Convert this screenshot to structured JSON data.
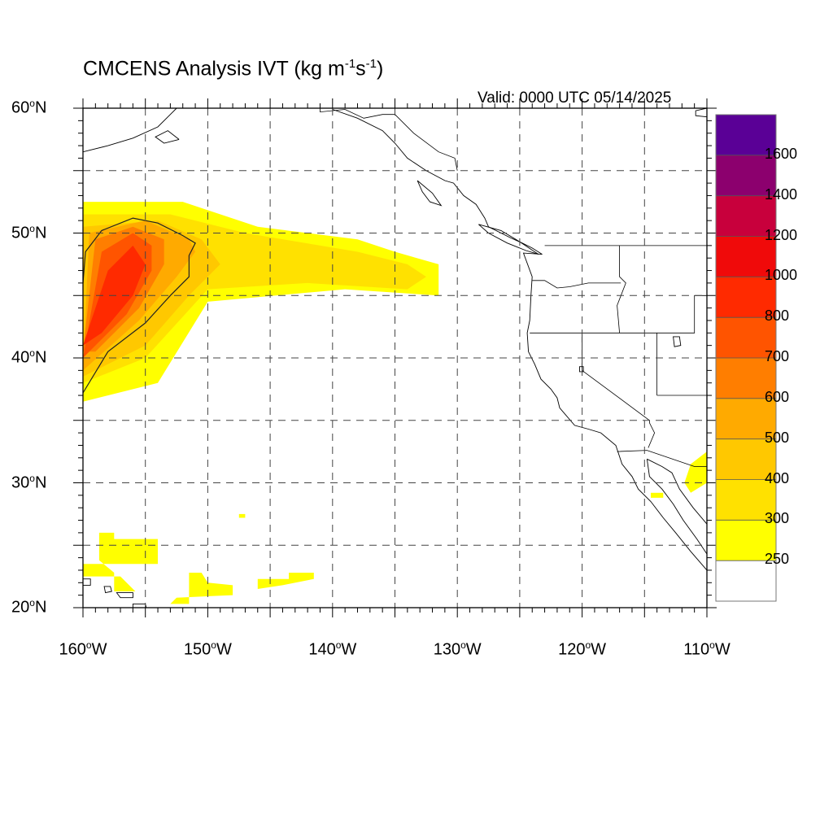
{
  "title": {
    "main": "CMCENS Analysis IVT (kg m",
    "sup1": "-1",
    "mid": "s",
    "sup2": "-1",
    "end": ")"
  },
  "valid_time": "Valid: 0000 UTC 05/14/2025",
  "map": {
    "projection": "cylindrical-equidistant",
    "lon_range": [
      -160,
      -110
    ],
    "lat_range": [
      20,
      60
    ],
    "grid": "dashed",
    "grid_step_deg": 5
  },
  "axes": {
    "lat_ticks": [
      {
        "deg": "60",
        "hem": "N",
        "value": 60
      },
      {
        "deg": "50",
        "hem": "N",
        "value": 50
      },
      {
        "deg": "40",
        "hem": "N",
        "value": 40
      },
      {
        "deg": "30",
        "hem": "N",
        "value": 30
      },
      {
        "deg": "20",
        "hem": "N",
        "value": 20
      }
    ],
    "lon_ticks": [
      {
        "deg": "160",
        "hem": "W",
        "value": -160
      },
      {
        "deg": "150",
        "hem": "W",
        "value": -150
      },
      {
        "deg": "140",
        "hem": "W",
        "value": -140
      },
      {
        "deg": "130",
        "hem": "W",
        "value": -130
      },
      {
        "deg": "120",
        "hem": "W",
        "value": -120
      },
      {
        "deg": "110",
        "hem": "W",
        "value": -110
      }
    ],
    "degree_symbol": "o"
  },
  "colorbar": {
    "colors": [
      "#ffffff",
      "#ffff00",
      "#ffe100",
      "#ffc800",
      "#ffaa00",
      "#ff7e00",
      "#ff5400",
      "#ff2a00",
      "#f00a0a",
      "#c8003c",
      "#8c006e",
      "#5a0096"
    ],
    "labels": [
      "250",
      "300",
      "400",
      "500",
      "600",
      "700",
      "800",
      "1000",
      "1200",
      "1400",
      "1600"
    ]
  },
  "ivt_regions": [
    {
      "level": 1,
      "polygon": [
        [
          -160,
          52.5
        ],
        [
          -152,
          52.5
        ],
        [
          -146,
          50.5
        ],
        [
          -138,
          49.5
        ],
        [
          -135,
          48.5
        ],
        [
          -131.5,
          47.5
        ],
        [
          -131.5,
          45
        ],
        [
          -139,
          45.5
        ],
        [
          -150,
          44.5
        ],
        [
          -154,
          38
        ],
        [
          -160,
          36.5
        ]
      ]
    },
    {
      "level": 2,
      "polygon": [
        [
          -160,
          51.5
        ],
        [
          -153,
          51.5
        ],
        [
          -147,
          50
        ],
        [
          -138,
          48.5
        ],
        [
          -134,
          47.5
        ],
        [
          -132.5,
          46.5
        ],
        [
          -134,
          45.5
        ],
        [
          -142,
          46
        ],
        [
          -150,
          45.5
        ],
        [
          -155,
          40
        ],
        [
          -160,
          38
        ]
      ]
    },
    {
      "level": 3,
      "polygon": [
        [
          -160,
          50.5
        ],
        [
          -154,
          51
        ],
        [
          -150.5,
          49.5
        ],
        [
          -149,
          47.5
        ],
        [
          -151.5,
          45
        ],
        [
          -155,
          41
        ],
        [
          -160,
          38.5
        ]
      ]
    },
    {
      "level": 4,
      "polygon": [
        [
          -159.5,
          50
        ],
        [
          -155,
          51
        ],
        [
          -151.5,
          49.5
        ],
        [
          -151,
          48.5
        ],
        [
          -152.5,
          46.5
        ],
        [
          -155.5,
          43
        ],
        [
          -160,
          39
        ]
      ]
    },
    {
      "level": 5,
      "polygon": [
        [
          -159,
          49.5
        ],
        [
          -156,
          50.5
        ],
        [
          -153.5,
          49.5
        ],
        [
          -153.5,
          47.5
        ],
        [
          -155.5,
          44
        ],
        [
          -159,
          40.5
        ],
        [
          -160,
          40.5
        ]
      ]
    },
    {
      "level": 6,
      "polygon": [
        [
          -158.5,
          48.5
        ],
        [
          -156,
          50
        ],
        [
          -154.5,
          49
        ],
        [
          -154.5,
          47
        ],
        [
          -156.5,
          43.5
        ],
        [
          -160,
          40
        ]
      ]
    },
    {
      "level": 7,
      "polygon": [
        [
          -158,
          47
        ],
        [
          -156,
          49
        ],
        [
          -155,
          47.5
        ],
        [
          -156,
          45
        ],
        [
          -158.5,
          42
        ],
        [
          -160,
          41
        ]
      ]
    },
    {
      "level": 1,
      "polygon": [
        [
          -158.7,
          26
        ],
        [
          -157.5,
          26
        ],
        [
          -157.5,
          25.5
        ],
        [
          -154,
          25.5
        ],
        [
          -154,
          23.5
        ],
        [
          -160,
          23.5
        ],
        [
          -160,
          22.5
        ],
        [
          -157,
          22.5
        ],
        [
          -155.8,
          21.3
        ],
        [
          -157.5,
          21.3
        ],
        [
          -157.5,
          22.8
        ],
        [
          -158.7,
          23.8
        ]
      ]
    },
    {
      "level": 1,
      "polygon": [
        [
          -151.5,
          22.8
        ],
        [
          -150.5,
          22.8
        ],
        [
          -150,
          22
        ],
        [
          -148,
          21.8
        ],
        [
          -148,
          21
        ],
        [
          -152.5,
          20.8
        ],
        [
          -153,
          20.3
        ],
        [
          -151.5,
          20.3
        ]
      ]
    },
    {
      "level": 1,
      "polygon": [
        [
          -146,
          22.3
        ],
        [
          -143.5,
          22.3
        ],
        [
          -143.5,
          22.8
        ],
        [
          -141.5,
          22.8
        ],
        [
          -141.5,
          22.3
        ],
        [
          -144,
          21.8
        ],
        [
          -146,
          21.5
        ]
      ]
    },
    {
      "level": 1,
      "polygon": [
        [
          -147.5,
          27.5
        ],
        [
          -147,
          27.5
        ],
        [
          -147,
          27.2
        ],
        [
          -147.5,
          27.2
        ]
      ]
    },
    {
      "level": 1,
      "polygon": [
        [
          -111.3,
          31.5
        ],
        [
          -110,
          32.5
        ],
        [
          -110,
          30
        ],
        [
          -111.3,
          29.2
        ],
        [
          -111.8,
          30
        ]
      ]
    },
    {
      "level": 1,
      "polygon": [
        [
          -114.5,
          29.2
        ],
        [
          -113.5,
          29.2
        ],
        [
          -113.5,
          28.8
        ],
        [
          -114.5,
          28.8
        ]
      ]
    }
  ],
  "contour_250": [
    [
      -160,
      37.2
    ],
    [
      -158,
      40.5
    ],
    [
      -155,
      42.8
    ],
    [
      -153,
      45
    ],
    [
      -151.5,
      46.5
    ],
    [
      -151.5,
      48.2
    ],
    [
      -151,
      49.2
    ],
    [
      -152,
      49.8
    ],
    [
      -154,
      50.8
    ],
    [
      -156,
      51.2
    ],
    [
      -158.5,
      50.2
    ],
    [
      -159.8,
      48.5
    ],
    [
      -160,
      46
    ]
  ],
  "coastline": [
    [
      [
        -140,
        59.9
      ],
      [
        -138,
        59.2
      ],
      [
        -136,
        58.2
      ],
      [
        -135,
        57.2
      ],
      [
        -134,
        56
      ],
      [
        -132.5,
        55
      ],
      [
        -131,
        54.2
      ],
      [
        -130.3,
        54
      ],
      [
        -129.5,
        53
      ],
      [
        -128.5,
        52.3
      ],
      [
        -127.8,
        51.2
      ],
      [
        -127.5,
        50.5
      ],
      [
        -125.7,
        49.6
      ],
      [
        -124.8,
        49.2
      ],
      [
        -124,
        48.8
      ],
      [
        -123.2,
        48.3
      ],
      [
        -124.7,
        48.4
      ],
      [
        -124,
        46.5
      ],
      [
        -124.1,
        45
      ],
      [
        -124.2,
        43
      ],
      [
        -124.4,
        42
      ],
      [
        -124.3,
        40.5
      ],
      [
        -123.8,
        39.5
      ],
      [
        -123.3,
        38.3
      ],
      [
        -122.5,
        37.5
      ],
      [
        -122,
        36.8
      ],
      [
        -121.8,
        36
      ],
      [
        -120.6,
        34.6
      ],
      [
        -119.5,
        34.3
      ],
      [
        -118.5,
        34
      ],
      [
        -117.3,
        33
      ],
      [
        -116.8,
        31.5
      ],
      [
        -116,
        30.5
      ],
      [
        -115.5,
        29.5
      ],
      [
        -114.5,
        28.5
      ],
      [
        -113.5,
        27.2
      ],
      [
        -112.5,
        26
      ],
      [
        -111.3,
        24.5
      ],
      [
        -110,
        23
      ]
    ],
    [
      [
        -114.8,
        31.9
      ],
      [
        -114.6,
        30.5
      ],
      [
        -113.6,
        29.5
      ],
      [
        -112.7,
        28.3
      ],
      [
        -111.9,
        27
      ],
      [
        -110.8,
        25.5
      ],
      [
        -110,
        24.3
      ]
    ],
    [
      [
        -114.8,
        31.9
      ],
      [
        -113.6,
        31.3
      ],
      [
        -112.8,
        30.8
      ],
      [
        -112.2,
        29.5
      ],
      [
        -111.1,
        28
      ],
      [
        -110,
        26.7
      ]
    ],
    [
      [
        -110,
        59.3
      ],
      [
        -110.9,
        59.4
      ],
      [
        -110.9,
        59.8
      ],
      [
        -110,
        60
      ]
    ],
    [
      [
        -160,
        56.5
      ],
      [
        -158,
        57
      ],
      [
        -156,
        57.6
      ],
      [
        -154,
        58.5
      ],
      [
        -153,
        59.5
      ],
      [
        -152.5,
        60
      ]
    ],
    [
      [
        -152.3,
        57.5
      ],
      [
        -153.5,
        57.2
      ],
      [
        -154.2,
        57.7
      ],
      [
        -153.2,
        58.2
      ],
      [
        -152.3,
        57.5
      ]
    ],
    [
      [
        -133.2,
        54.2
      ],
      [
        -132,
        53.2
      ],
      [
        -131.3,
        52.2
      ],
      [
        -132.2,
        52.5
      ],
      [
        -132.8,
        53.3
      ],
      [
        -133.2,
        54.2
      ]
    ],
    [
      [
        -128.3,
        50.7
      ],
      [
        -126.5,
        50.2
      ],
      [
        -125,
        49.3
      ],
      [
        -123.5,
        48.3
      ],
      [
        -124.5,
        48.6
      ],
      [
        -126,
        49.2
      ],
      [
        -127.5,
        50
      ],
      [
        -128.3,
        50.7
      ]
    ]
  ],
  "islands": [
    [
      [
        -160,
        22.3
      ],
      [
        -159.4,
        22.3
      ],
      [
        -159.4,
        21.8
      ],
      [
        -160,
        21.8
      ]
    ],
    [
      [
        -158.3,
        21.7
      ],
      [
        -157.8,
        21.7
      ],
      [
        -157.7,
        21.3
      ],
      [
        -158.2,
        21.2
      ]
    ],
    [
      [
        -157.3,
        21.2
      ],
      [
        -156,
        21.2
      ],
      [
        -156,
        20.8
      ],
      [
        -157,
        20.8
      ]
    ],
    [
      [
        -156,
        20.3
      ],
      [
        -155,
        20.3
      ],
      [
        -154.8,
        19.5
      ],
      [
        -156,
        19.5
      ]
    ]
  ],
  "borders": [
    [
      [
        -141,
        60
      ],
      [
        -141,
        59.7
      ],
      [
        -139,
        59.9
      ],
      [
        -137.5,
        59.2
      ],
      [
        -136,
        59.5
      ],
      [
        -135,
        59.5
      ],
      [
        -133.5,
        58
      ],
      [
        -131.5,
        56.5
      ],
      [
        -130.2,
        56
      ],
      [
        -130,
        55
      ]
    ],
    [
      [
        -123,
        49
      ],
      [
        -110,
        49
      ]
    ],
    [
      [
        -124,
        46.2
      ],
      [
        -123,
        46.2
      ],
      [
        -122,
        45.6
      ],
      [
        -121,
        45.7
      ],
      [
        -119.5,
        46
      ],
      [
        -116.9,
        46
      ]
    ],
    [
      [
        -117,
        49
      ],
      [
        -117,
        46.5
      ],
      [
        -116.5,
        46
      ],
      [
        -117.2,
        44.2
      ],
      [
        -117,
        42
      ]
    ],
    [
      [
        -124.2,
        42
      ],
      [
        -111,
        42
      ],
      [
        -111,
        45
      ],
      [
        -110,
        45
      ]
    ],
    [
      [
        -120,
        42
      ],
      [
        -120,
        39
      ],
      [
        -114.6,
        35
      ],
      [
        -114.6,
        34.8
      ],
      [
        -114.2,
        34
      ],
      [
        -114.7,
        32.8
      ]
    ],
    [
      [
        -114,
        42
      ],
      [
        -114,
        37
      ]
    ],
    [
      [
        -114,
        37
      ],
      [
        -110,
        37
      ]
    ],
    [
      [
        -117.2,
        32.5
      ],
      [
        -114.8,
        32.6
      ],
      [
        -111,
        31.3
      ],
      [
        -110,
        31.3
      ]
    ]
  ],
  "lakes": [
    [
      [
        -112.7,
        41.7
      ],
      [
        -112.2,
        41.7
      ],
      [
        -112.1,
        41
      ],
      [
        -112.6,
        40.9
      ]
    ],
    [
      [
        -120.2,
        39.3
      ],
      [
        -119.9,
        39.3
      ],
      [
        -119.9,
        38.9
      ],
      [
        -120.2,
        38.9
      ]
    ]
  ]
}
